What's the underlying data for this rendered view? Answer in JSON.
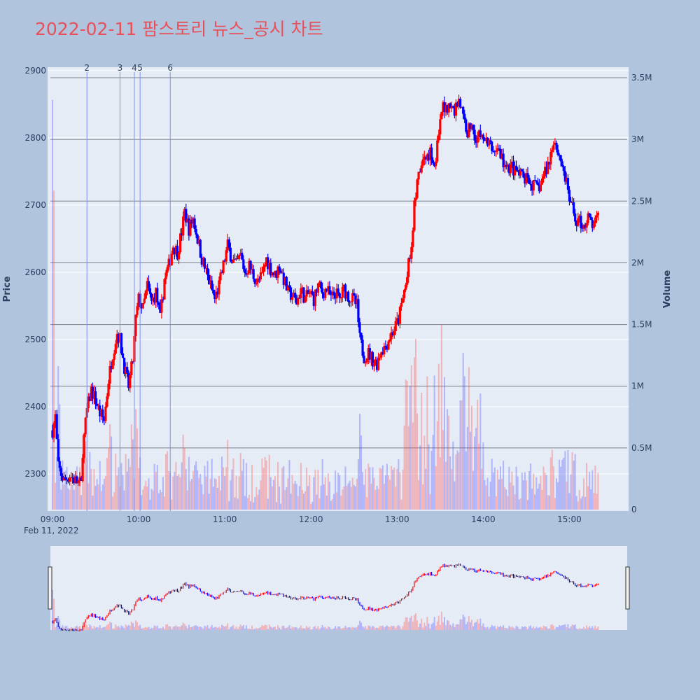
{
  "chart_data": {
    "type": "candlestick",
    "title": "2022-02-11 팜스토리 뉴스_공시 차트",
    "ylabel": "Price",
    "y2label": "Volume",
    "ylim": [
      2245,
      2905
    ],
    "y2lim": [
      0,
      3600000
    ],
    "yticks": [
      2300,
      2400,
      2500,
      2600,
      2700,
      2800,
      2900
    ],
    "y2ticks": [
      {
        "v": 0,
        "label": "0"
      },
      {
        "v": 500000,
        "label": "0.5M"
      },
      {
        "v": 1000000,
        "label": "1M"
      },
      {
        "v": 1500000,
        "label": "1.5M"
      },
      {
        "v": 2000000,
        "label": "2M"
      },
      {
        "v": 2500000,
        "label": "2.5M"
      },
      {
        "v": 3000000,
        "label": "3M"
      },
      {
        "v": 3500000,
        "label": "3.5M"
      }
    ],
    "xrange": [
      "09:00",
      "15:30"
    ],
    "xticks": [
      {
        "t": "09:00",
        "label": "09:00"
      },
      {
        "t": "10:00",
        "label": "10:00"
      },
      {
        "t": "11:00",
        "label": "11:00"
      },
      {
        "t": "12:00",
        "label": "12:00"
      },
      {
        "t": "13:00",
        "label": "13:00"
      },
      {
        "t": "14:00",
        "label": "14:00"
      },
      {
        "t": "15:00",
        "label": "15:00"
      }
    ],
    "date_label": "Feb 11, 2022",
    "news_markers": [
      {
        "t": "09:24",
        "label": "2"
      },
      {
        "t": "09:47",
        "label": "3"
      },
      {
        "t": "09:57",
        "label": "4"
      },
      {
        "t": "10:01",
        "label": "5"
      },
      {
        "t": "10:22",
        "label": "6"
      }
    ],
    "price_path": [
      [
        "09:00",
        2365
      ],
      [
        "09:02",
        2385
      ],
      [
        "09:04",
        2310
      ],
      [
        "09:08",
        2290
      ],
      [
        "09:12",
        2298
      ],
      [
        "09:16",
        2290
      ],
      [
        "09:20",
        2284
      ],
      [
        "09:21",
        2335
      ],
      [
        "09:24",
        2395
      ],
      [
        "09:27",
        2425
      ],
      [
        "09:30",
        2410
      ],
      [
        "09:33",
        2390
      ],
      [
        "09:36",
        2380
      ],
      [
        "09:39",
        2440
      ],
      [
        "09:42",
        2480
      ],
      [
        "09:45",
        2510
      ],
      [
        "09:47",
        2500
      ],
      [
        "09:50",
        2460
      ],
      [
        "09:53",
        2430
      ],
      [
        "09:56",
        2470
      ],
      [
        "09:58",
        2530
      ],
      [
        "10:00",
        2560
      ],
      [
        "10:03",
        2545
      ],
      [
        "10:06",
        2580
      ],
      [
        "10:09",
        2555
      ],
      [
        "10:12",
        2570
      ],
      [
        "10:15",
        2530
      ],
      [
        "10:18",
        2590
      ],
      [
        "10:21",
        2610
      ],
      [
        "10:24",
        2640
      ],
      [
        "10:27",
        2630
      ],
      [
        "10:30",
        2660
      ],
      [
        "10:32",
        2690
      ],
      [
        "10:35",
        2665
      ],
      [
        "10:38",
        2680
      ],
      [
        "10:41",
        2650
      ],
      [
        "10:44",
        2620
      ],
      [
        "10:47",
        2600
      ],
      [
        "10:50",
        2580
      ],
      [
        "10:53",
        2560
      ],
      [
        "10:56",
        2580
      ],
      [
        "10:59",
        2610
      ],
      [
        "11:02",
        2640
      ],
      [
        "11:05",
        2620
      ],
      [
        "11:08",
        2610
      ],
      [
        "11:11",
        2625
      ],
      [
        "11:14",
        2600
      ],
      [
        "11:17",
        2610
      ],
      [
        "11:20",
        2595
      ],
      [
        "11:23",
        2585
      ],
      [
        "11:26",
        2595
      ],
      [
        "11:29",
        2620
      ],
      [
        "11:32",
        2605
      ],
      [
        "11:35",
        2595
      ],
      [
        "11:38",
        2610
      ],
      [
        "11:41",
        2590
      ],
      [
        "11:44",
        2570
      ],
      [
        "11:47",
        2565
      ],
      [
        "11:50",
        2555
      ],
      [
        "11:53",
        2575
      ],
      [
        "11:56",
        2560
      ],
      [
        "11:59",
        2570
      ],
      [
        "12:02",
        2560
      ],
      [
        "12:05",
        2580
      ],
      [
        "12:08",
        2570
      ],
      [
        "12:11",
        2575
      ],
      [
        "12:14",
        2560
      ],
      [
        "12:17",
        2570
      ],
      [
        "12:20",
        2560
      ],
      [
        "12:23",
        2575
      ],
      [
        "12:26",
        2565
      ],
      [
        "12:29",
        2560
      ],
      [
        "12:32",
        2550
      ],
      [
        "12:34",
        2500
      ],
      [
        "12:37",
        2475
      ],
      [
        "12:40",
        2480
      ],
      [
        "12:43",
        2470
      ],
      [
        "12:46",
        2465
      ],
      [
        "12:49",
        2485
      ],
      [
        "12:52",
        2490
      ],
      [
        "12:55",
        2505
      ],
      [
        "12:58",
        2515
      ],
      [
        "13:01",
        2530
      ],
      [
        "13:04",
        2560
      ],
      [
        "13:07",
        2600
      ],
      [
        "13:10",
        2640
      ],
      [
        "13:12",
        2700
      ],
      [
        "13:14",
        2730
      ],
      [
        "13:17",
        2760
      ],
      [
        "13:20",
        2770
      ],
      [
        "13:23",
        2780
      ],
      [
        "13:26",
        2760
      ],
      [
        "13:29",
        2800
      ],
      [
        "13:31",
        2840
      ],
      [
        "13:34",
        2850
      ],
      [
        "13:37",
        2845
      ],
      [
        "13:40",
        2840
      ],
      [
        "13:43",
        2860
      ],
      [
        "13:46",
        2830
      ],
      [
        "13:49",
        2810
      ],
      [
        "13:52",
        2820
      ],
      [
        "13:55",
        2800
      ],
      [
        "13:58",
        2805
      ],
      [
        "14:01",
        2795
      ],
      [
        "14:04",
        2790
      ],
      [
        "14:07",
        2780
      ],
      [
        "14:10",
        2785
      ],
      [
        "14:13",
        2770
      ],
      [
        "14:16",
        2750
      ],
      [
        "14:19",
        2760
      ],
      [
        "14:22",
        2750
      ],
      [
        "14:25",
        2745
      ],
      [
        "14:28",
        2740
      ],
      [
        "14:31",
        2735
      ],
      [
        "14:34",
        2730
      ],
      [
        "14:37",
        2725
      ],
      [
        "14:40",
        2730
      ],
      [
        "14:43",
        2750
      ],
      [
        "14:46",
        2765
      ],
      [
        "14:49",
        2800
      ],
      [
        "14:52",
        2780
      ],
      [
        "14:55",
        2760
      ],
      [
        "14:58",
        2730
      ],
      [
        "15:01",
        2700
      ],
      [
        "15:04",
        2680
      ],
      [
        "15:07",
        2675
      ],
      [
        "15:10",
        2670
      ],
      [
        "15:13",
        2680
      ],
      [
        "15:16",
        2670
      ],
      [
        "15:19",
        2675
      ],
      [
        "15:20",
        2680
      ]
    ]
  }
}
